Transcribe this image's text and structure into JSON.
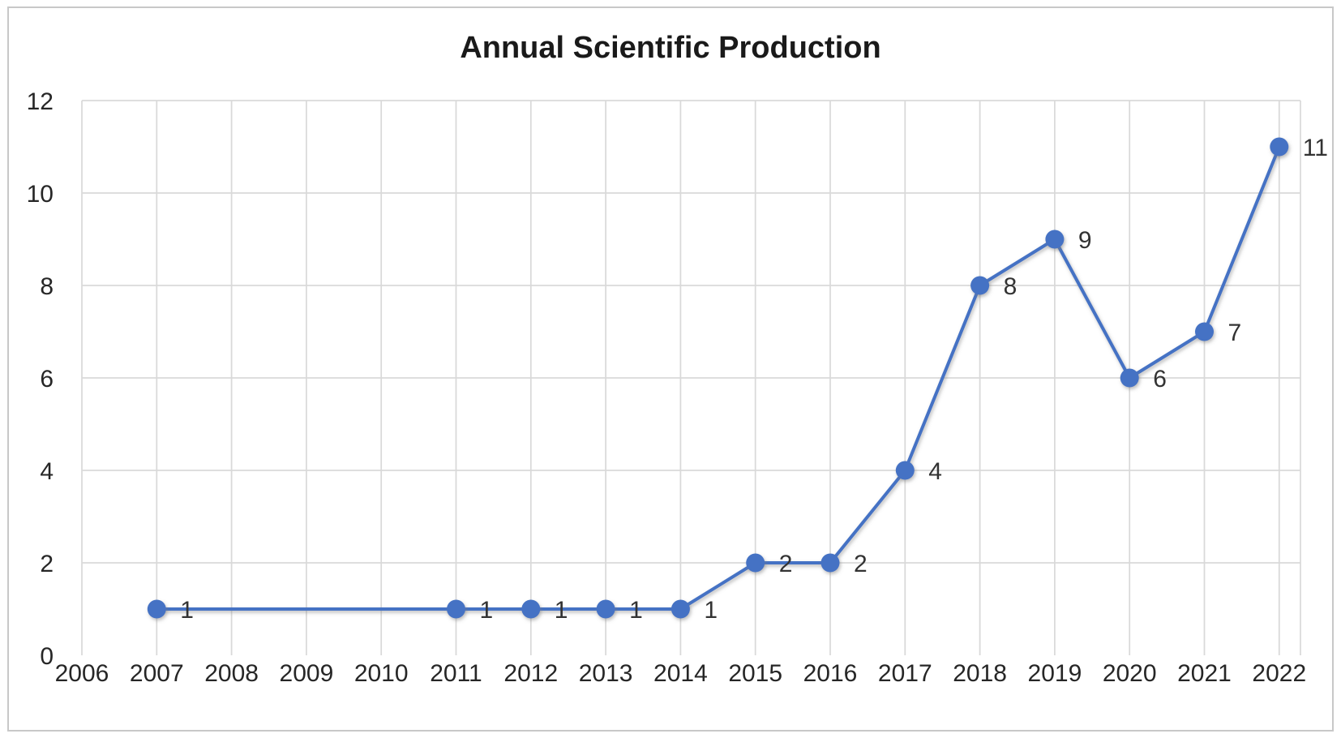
{
  "chart_data": {
    "type": "line",
    "title": "Annual Scientific Production",
    "categories": [
      "2006",
      "2007",
      "2008",
      "2009",
      "2010",
      "2011",
      "2012",
      "2013",
      "2014",
      "2015",
      "2016",
      "2017",
      "2018",
      "2019",
      "2020",
      "2021",
      "2022"
    ],
    "yticks": [
      0,
      2,
      4,
      6,
      8,
      10,
      12
    ],
    "ylim": [
      0,
      12
    ],
    "grid": true,
    "legend": "none",
    "series": [
      {
        "points": [
          {
            "x": "2007",
            "y": 1,
            "label": "1"
          },
          {
            "x": "2011",
            "y": 1,
            "label": "1"
          },
          {
            "x": "2012",
            "y": 1,
            "label": "1"
          },
          {
            "x": "2013",
            "y": 1,
            "label": "1"
          },
          {
            "x": "2014",
            "y": 1,
            "label": "1"
          },
          {
            "x": "2015",
            "y": 2,
            "label": "2"
          },
          {
            "x": "2016",
            "y": 2,
            "label": "2"
          },
          {
            "x": "2017",
            "y": 4,
            "label": "4"
          },
          {
            "x": "2018",
            "y": 8,
            "label": "8"
          },
          {
            "x": "2019",
            "y": 9,
            "label": "9"
          },
          {
            "x": "2020",
            "y": 6,
            "label": "6"
          },
          {
            "x": "2021",
            "y": 7,
            "label": "7"
          },
          {
            "x": "2022",
            "y": 11,
            "label": "11"
          }
        ]
      }
    ],
    "colors": {
      "line": "#4472C4",
      "marker": "#4472C4",
      "gridline": "#D9D9D9",
      "axis_line": "#BDBCBC",
      "tick_label": "#262626",
      "data_label": "#333333",
      "title": "#1A1A1A",
      "background": "#FFFFFF",
      "border": "#C8C8C8"
    }
  }
}
